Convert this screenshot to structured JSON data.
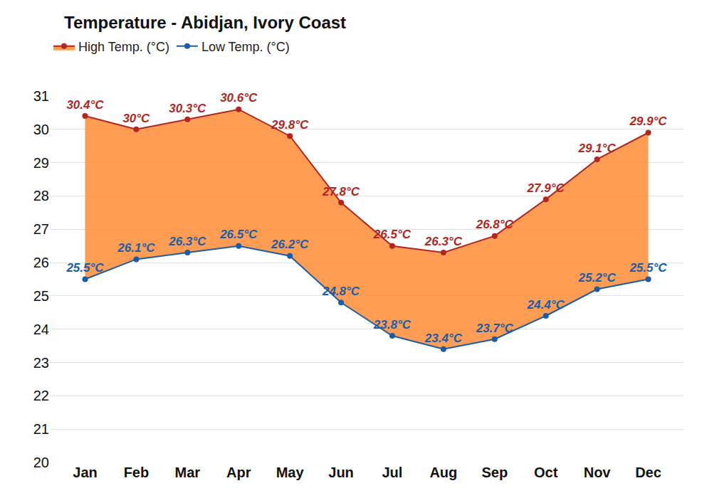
{
  "chart_data": {
    "type": "line",
    "title": "Temperature - Abidjan, Ivory Coast",
    "categories": [
      "Jan",
      "Feb",
      "Mar",
      "Apr",
      "May",
      "Jun",
      "Jul",
      "Aug",
      "Sep",
      "Oct",
      "Nov",
      "Dec"
    ],
    "series": [
      {
        "name": "Low Temp. (°C)",
        "color": "#1a5da6",
        "marker": "circle",
        "values": [
          25.5,
          26.1,
          26.3,
          26.5,
          26.2,
          24.8,
          23.8,
          23.4,
          23.7,
          24.4,
          25.2,
          25.5
        ],
        "value_labels": [
          "25.5°C",
          "26.1°C",
          "26.3°C",
          "26.5°C",
          "26.2°C",
          "24.8°C",
          "23.8°C",
          "23.4°C",
          "23.7°C",
          "24.4°C",
          "25.2°C",
          "25.5°C"
        ]
      },
      {
        "name": "High Temp. (°C)",
        "color": "#b3261e",
        "marker": "circle",
        "values": [
          30.4,
          30,
          30.3,
          30.6,
          29.8,
          27.8,
          26.5,
          26.3,
          26.8,
          27.9,
          29.1,
          29.9
        ],
        "value_labels": [
          "30.4°C",
          "30°C",
          "30.3°C",
          "30.6°C",
          "29.8°C",
          "27.8°C",
          "26.5°C",
          "26.3°C",
          "26.8°C",
          "27.9°C",
          "29.1°C",
          "29.9°C"
        ]
      }
    ],
    "ylim": [
      20,
      31
    ],
    "yticks": [
      20,
      21,
      22,
      23,
      24,
      25,
      26,
      27,
      28,
      29,
      30,
      31
    ],
    "grid": true,
    "legend": "top-left",
    "data_labels": true
  }
}
